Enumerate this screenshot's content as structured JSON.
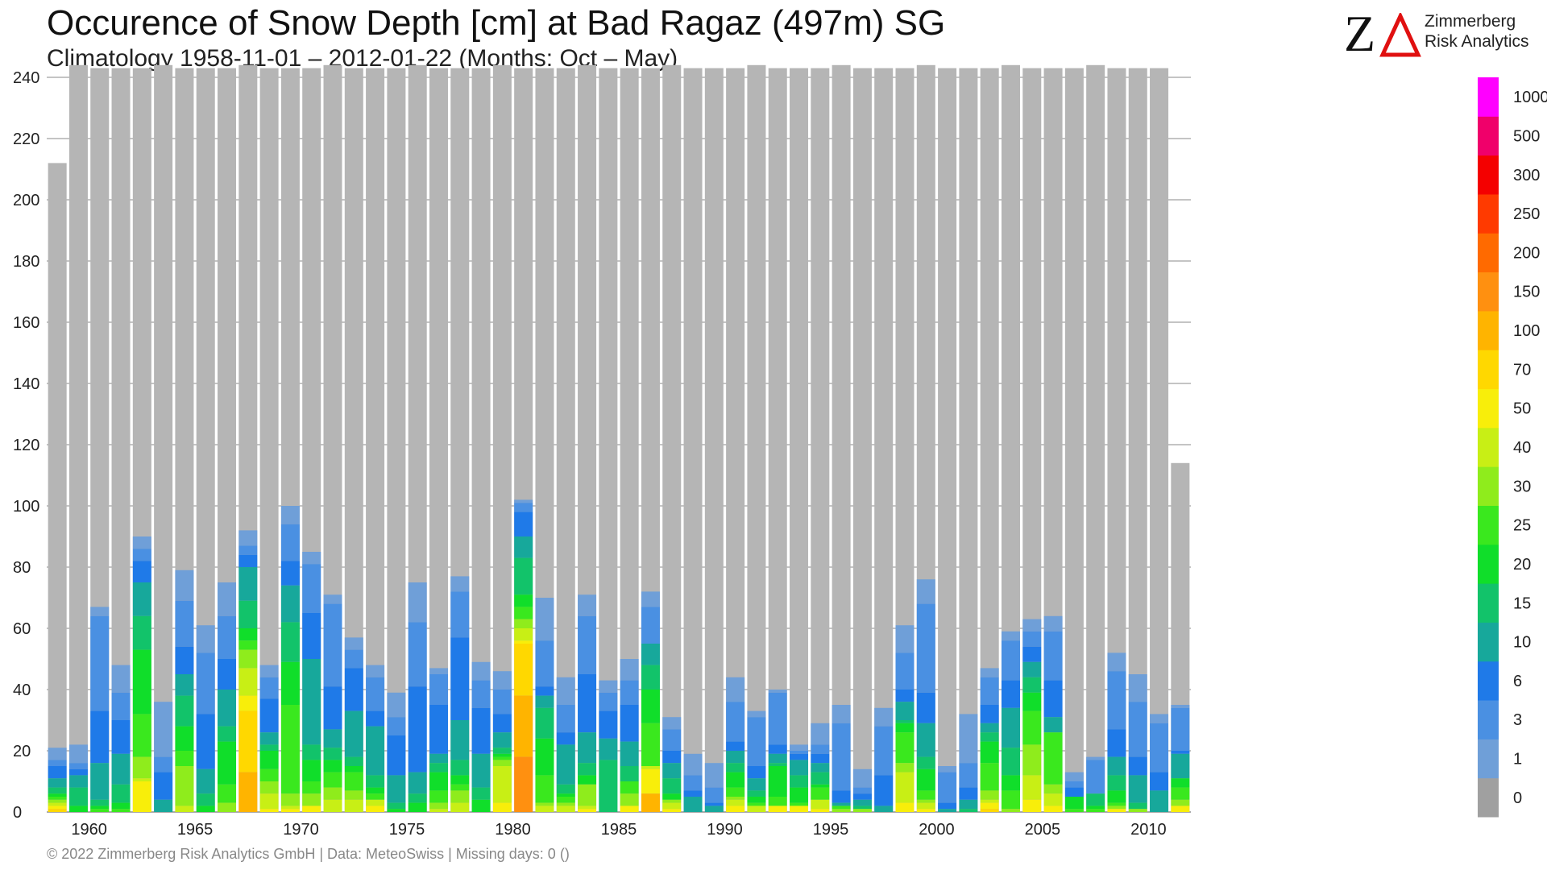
{
  "header": {
    "title": "Occurence of Snow Depth [cm] at Bad Ragaz (497m) SG",
    "subtitle": "Climatology 1958-11-01 – 2012-01-22 (Months: Oct – May)"
  },
  "logo": {
    "mark_letter": "Z",
    "line1": "Zimmerberg",
    "line2": "Risk Analytics",
    "accent": "#e01010"
  },
  "footer": {
    "text": "©  2022 Zimmerberg Risk Analytics GmbH | Data: MeteoSwiss | Missing days: 0 ()"
  },
  "chart_data": {
    "type": "bar",
    "stacked": true,
    "unit": "days",
    "ylim": [
      0,
      243
    ],
    "yticks": [
      0,
      20,
      40,
      60,
      80,
      100,
      120,
      140,
      160,
      180,
      200,
      220,
      240
    ],
    "xticks": [
      1960,
      1965,
      1970,
      1975,
      1980,
      1985,
      1990,
      1995,
      2000,
      2005,
      2010
    ],
    "grid": true,
    "legend": "right colorbar",
    "color_classes": [
      {
        "label": "0",
        "color": "#a0a0a0"
      },
      {
        "label": "1",
        "color": "#6f9fd8"
      },
      {
        "label": "3",
        "color": "#4a90e2"
      },
      {
        "label": "6",
        "color": "#1f7ae8"
      },
      {
        "label": "10",
        "color": "#17a89b"
      },
      {
        "label": "15",
        "color": "#12c36a"
      },
      {
        "label": "20",
        "color": "#10de2a"
      },
      {
        "label": "25",
        "color": "#3ae81e"
      },
      {
        "label": "30",
        "color": "#8fec1c"
      },
      {
        "label": "40",
        "color": "#c8ef15"
      },
      {
        "label": "50",
        "color": "#f8ee0a"
      },
      {
        "label": "70",
        "color": "#ffd800"
      },
      {
        "label": "100",
        "color": "#ffb400"
      },
      {
        "label": "150",
        "color": "#ff9010"
      },
      {
        "label": "200",
        "color": "#ff6a00"
      },
      {
        "label": "250",
        "color": "#ff3a00"
      },
      {
        "label": "300",
        "color": "#f40000"
      },
      {
        "label": "500",
        "color": "#f0006a"
      },
      {
        "label": "1000",
        "color": "#ff00ff"
      }
    ],
    "winters": [
      1959,
      1960,
      1961,
      1962,
      1963,
      1964,
      1965,
      1966,
      1967,
      1968,
      1969,
      1970,
      1971,
      1972,
      1973,
      1974,
      1975,
      1976,
      1977,
      1978,
      1979,
      1980,
      1981,
      1982,
      1983,
      1984,
      1985,
      1986,
      1987,
      1988,
      1989,
      1990,
      1991,
      1992,
      1993,
      1994,
      1995,
      1996,
      1997,
      1998,
      1999,
      2000,
      2001,
      2002,
      2003,
      2004,
      2005,
      2006,
      2007,
      2008,
      2009,
      2010,
      2011,
      2012
    ],
    "totals": [
      212,
      244,
      243,
      243,
      243,
      244,
      243,
      243,
      243,
      244,
      243,
      243,
      243,
      244,
      243,
      243,
      243,
      244,
      243,
      243,
      243,
      244,
      243,
      243,
      243,
      244,
      243,
      243,
      243,
      244,
      243,
      243,
      243,
      244,
      243,
      243,
      243,
      244,
      243,
      243,
      243,
      244,
      243,
      243,
      243,
      244,
      243,
      243,
      243,
      244,
      243,
      243,
      243,
      114
    ],
    "snow_days_by_class": [
      [
        4,
        2,
        4,
        3,
        2,
        1,
        1,
        1,
        1,
        1,
        1,
        0,
        0,
        0,
        0,
        0,
        0,
        0
      ],
      [
        6,
        2,
        2,
        4,
        6,
        2,
        0,
        0,
        0,
        0,
        0,
        0,
        0,
        0,
        0,
        0,
        0,
        0
      ],
      [
        3,
        31,
        17,
        12,
        2,
        1,
        1,
        0,
        0,
        0,
        0,
        0,
        0,
        0,
        0,
        0,
        0,
        0
      ],
      [
        9,
        9,
        11,
        10,
        6,
        2,
        1,
        0,
        0,
        0,
        0,
        0,
        0,
        0,
        0,
        0,
        0,
        0
      ],
      [
        4,
        4,
        7,
        11,
        11,
        21,
        14,
        7,
        1,
        10,
        0,
        0,
        0,
        0,
        0,
        0,
        0,
        0
      ],
      [
        18,
        5,
        9,
        4,
        0,
        0,
        0,
        0,
        0,
        0,
        0,
        0,
        0,
        0,
        0,
        0,
        0,
        0
      ],
      [
        10,
        15,
        9,
        7,
        10,
        8,
        5,
        13,
        2,
        0,
        0,
        0,
        0,
        0,
        0,
        0,
        0,
        0
      ],
      [
        9,
        20,
        18,
        8,
        4,
        2,
        0,
        0,
        0,
        0,
        0,
        0,
        0,
        0,
        0,
        0,
        0,
        0
      ],
      [
        11,
        14,
        10,
        12,
        5,
        14,
        6,
        3,
        0,
        0,
        0,
        0,
        0,
        0,
        0,
        0,
        0,
        0
      ],
      [
        5,
        3,
        4,
        11,
        9,
        4,
        3,
        6,
        9,
        5,
        20,
        13,
        0,
        0,
        0,
        0,
        0,
        0
      ],
      [
        4,
        7,
        11,
        4,
        2,
        6,
        4,
        4,
        5,
        1,
        0,
        0,
        0,
        0,
        0,
        0,
        0,
        0
      ],
      [
        6,
        12,
        8,
        12,
        13,
        14,
        29,
        4,
        1,
        1,
        0,
        0,
        0,
        0,
        0,
        0,
        0,
        0
      ],
      [
        4,
        16,
        15,
        28,
        5,
        7,
        4,
        4,
        0,
        2,
        0,
        0,
        0,
        0,
        0,
        0,
        0,
        0
      ],
      [
        3,
        27,
        14,
        6,
        4,
        4,
        5,
        4,
        4,
        0,
        0,
        0,
        0,
        0,
        0,
        0,
        0,
        0
      ],
      [
        4,
        6,
        14,
        15,
        3,
        2,
        6,
        3,
        4,
        0,
        0,
        0,
        0,
        0,
        0,
        0,
        0,
        0
      ],
      [
        4,
        11,
        5,
        16,
        4,
        2,
        2,
        0,
        2,
        2,
        0,
        0,
        0,
        0,
        0,
        0,
        0,
        0
      ],
      [
        8,
        6,
        13,
        9,
        2,
        1,
        0,
        0,
        0,
        0,
        0,
        0,
        0,
        0,
        0,
        0,
        0,
        0
      ],
      [
        13,
        21,
        28,
        7,
        3,
        3,
        0,
        0,
        0,
        0,
        0,
        0,
        0,
        0,
        0,
        0,
        0,
        0
      ],
      [
        2,
        10,
        16,
        3,
        3,
        6,
        4,
        2,
        1,
        0,
        0,
        0,
        0,
        0,
        0,
        0,
        0,
        0
      ],
      [
        5,
        15,
        27,
        13,
        5,
        3,
        2,
        4,
        3,
        0,
        0,
        0,
        0,
        0,
        0,
        0,
        0,
        0
      ],
      [
        6,
        9,
        15,
        11,
        4,
        4,
        0,
        0,
        0,
        0,
        0,
        0,
        0,
        0,
        0,
        0,
        0,
        0
      ],
      [
        6,
        8,
        6,
        5,
        2,
        1,
        1,
        2,
        12,
        3,
        0,
        0,
        0,
        0,
        0,
        0,
        0,
        0
      ],
      [
        1,
        3,
        8,
        7,
        12,
        4,
        4,
        3,
        4,
        1,
        17,
        20,
        18,
        0,
        0,
        0,
        0,
        0
      ],
      [
        14,
        15,
        3,
        4,
        10,
        12,
        9,
        1,
        2,
        0,
        0,
        0,
        0,
        0,
        0,
        0,
        0,
        0
      ],
      [
        9,
        9,
        4,
        13,
        3,
        1,
        2,
        1,
        2,
        0,
        0,
        0,
        0,
        0,
        0,
        0,
        0,
        0
      ],
      [
        7,
        19,
        19,
        10,
        4,
        3,
        0,
        7,
        1,
        1,
        0,
        0,
        0,
        0,
        0,
        0,
        0,
        0
      ],
      [
        4,
        6,
        9,
        7,
        17,
        0,
        0,
        0,
        0,
        0,
        0,
        0,
        0,
        0,
        0,
        0,
        0,
        0
      ],
      [
        7,
        8,
        12,
        8,
        5,
        0,
        4,
        4,
        0,
        2,
        0,
        0,
        0,
        0,
        0,
        0,
        0,
        0
      ],
      [
        5,
        12,
        0,
        7,
        8,
        11,
        14,
        0,
        1,
        8,
        0,
        6,
        0,
        0,
        0,
        0,
        0,
        0
      ],
      [
        4,
        7,
        4,
        5,
        5,
        2,
        0,
        1,
        2,
        1,
        0,
        0,
        0,
        0,
        0,
        0,
        0,
        0
      ],
      [
        7,
        5,
        2,
        5,
        0,
        0,
        0,
        0,
        0,
        0,
        0,
        0,
        0,
        0,
        0,
        0,
        0,
        0
      ],
      [
        8,
        5,
        1,
        2,
        0,
        0,
        0,
        0,
        0,
        0,
        0,
        0,
        0,
        0,
        0,
        0,
        0,
        0
      ],
      [
        8,
        13,
        3,
        4,
        3,
        5,
        3,
        1,
        2,
        2,
        0,
        0,
        0,
        0,
        0,
        0,
        0,
        0
      ],
      [
        2,
        16,
        4,
        4,
        2,
        2,
        1,
        0,
        2,
        0,
        0,
        0,
        0,
        0,
        0,
        0,
        0,
        0
      ],
      [
        1,
        17,
        3,
        3,
        1,
        10,
        3,
        0,
        0,
        2,
        0,
        0,
        0,
        0,
        0,
        0,
        0,
        0
      ],
      [
        2,
        1,
        2,
        5,
        4,
        5,
        1,
        0,
        0,
        2,
        0,
        0,
        0,
        0,
        0,
        0,
        0,
        0
      ],
      [
        7,
        3,
        3,
        3,
        4,
        1,
        4,
        0,
        3,
        1,
        0,
        0,
        0,
        0,
        0,
        0,
        0,
        0
      ],
      [
        6,
        22,
        4,
        1,
        0,
        0,
        1,
        1,
        0,
        0,
        0,
        0,
        0,
        0,
        0,
        0,
        0,
        0
      ],
      [
        6,
        2,
        2,
        2,
        1,
        0,
        0,
        1,
        0,
        0,
        0,
        0,
        0,
        0,
        0,
        0,
        0,
        0
      ],
      [
        6,
        16,
        10,
        2,
        0,
        0,
        0,
        0,
        0,
        0,
        0,
        0,
        0,
        0,
        0,
        0,
        0,
        0
      ],
      [
        9,
        12,
        4,
        6,
        1,
        3,
        10,
        3,
        10,
        3,
        0,
        0,
        0,
        0,
        0,
        0,
        0,
        0
      ],
      [
        8,
        29,
        10,
        11,
        4,
        7,
        3,
        1,
        2,
        1,
        0,
        0,
        0,
        0,
        0,
        0,
        0,
        0
      ],
      [
        2,
        10,
        2,
        1,
        0,
        0,
        0,
        0,
        0,
        0,
        0,
        0,
        0,
        0,
        0,
        0,
        0,
        0
      ],
      [
        16,
        8,
        4,
        3,
        1,
        0,
        0,
        0,
        0,
        0,
        0,
        0,
        0,
        0,
        0,
        0,
        0,
        0
      ],
      [
        3,
        9,
        6,
        3,
        3,
        7,
        9,
        3,
        1,
        2,
        1,
        0,
        0,
        0,
        0,
        0,
        0,
        0
      ],
      [
        3,
        13,
        9,
        13,
        9,
        5,
        6,
        1,
        0,
        0,
        0,
        0,
        0,
        0,
        0,
        0,
        0,
        0
      ],
      [
        4,
        5,
        5,
        5,
        5,
        6,
        11,
        10,
        8,
        4,
        0,
        0,
        0,
        0,
        0,
        0,
        0,
        0
      ],
      [
        5,
        16,
        12,
        5,
        0,
        0,
        17,
        3,
        4,
        2,
        0,
        0,
        0,
        0,
        0,
        0,
        0,
        0
      ],
      [
        3,
        2,
        3,
        0,
        0,
        4,
        1,
        0,
        0,
        0,
        0,
        0,
        0,
        0,
        0,
        0,
        0,
        0
      ],
      [
        1,
        11,
        0,
        0,
        4,
        1,
        1,
        0,
        0,
        0,
        0,
        0,
        0,
        0,
        0,
        0,
        0,
        0
      ],
      [
        6,
        19,
        9,
        6,
        5,
        4,
        1,
        1,
        0,
        1,
        0,
        0,
        0,
        0,
        0,
        0,
        0,
        0
      ],
      [
        9,
        18,
        6,
        9,
        2,
        0,
        0,
        1,
        0,
        0,
        0,
        0,
        0,
        0,
        0,
        0,
        0,
        0
      ],
      [
        3,
        16,
        6,
        7,
        0,
        0,
        0,
        0,
        0,
        0,
        0,
        0,
        0,
        0,
        0,
        0,
        0,
        0
      ],
      [
        1,
        14,
        1,
        8,
        0,
        3,
        4,
        2,
        0,
        2,
        0,
        0,
        0,
        0,
        0,
        0,
        0,
        0
      ]
    ]
  }
}
